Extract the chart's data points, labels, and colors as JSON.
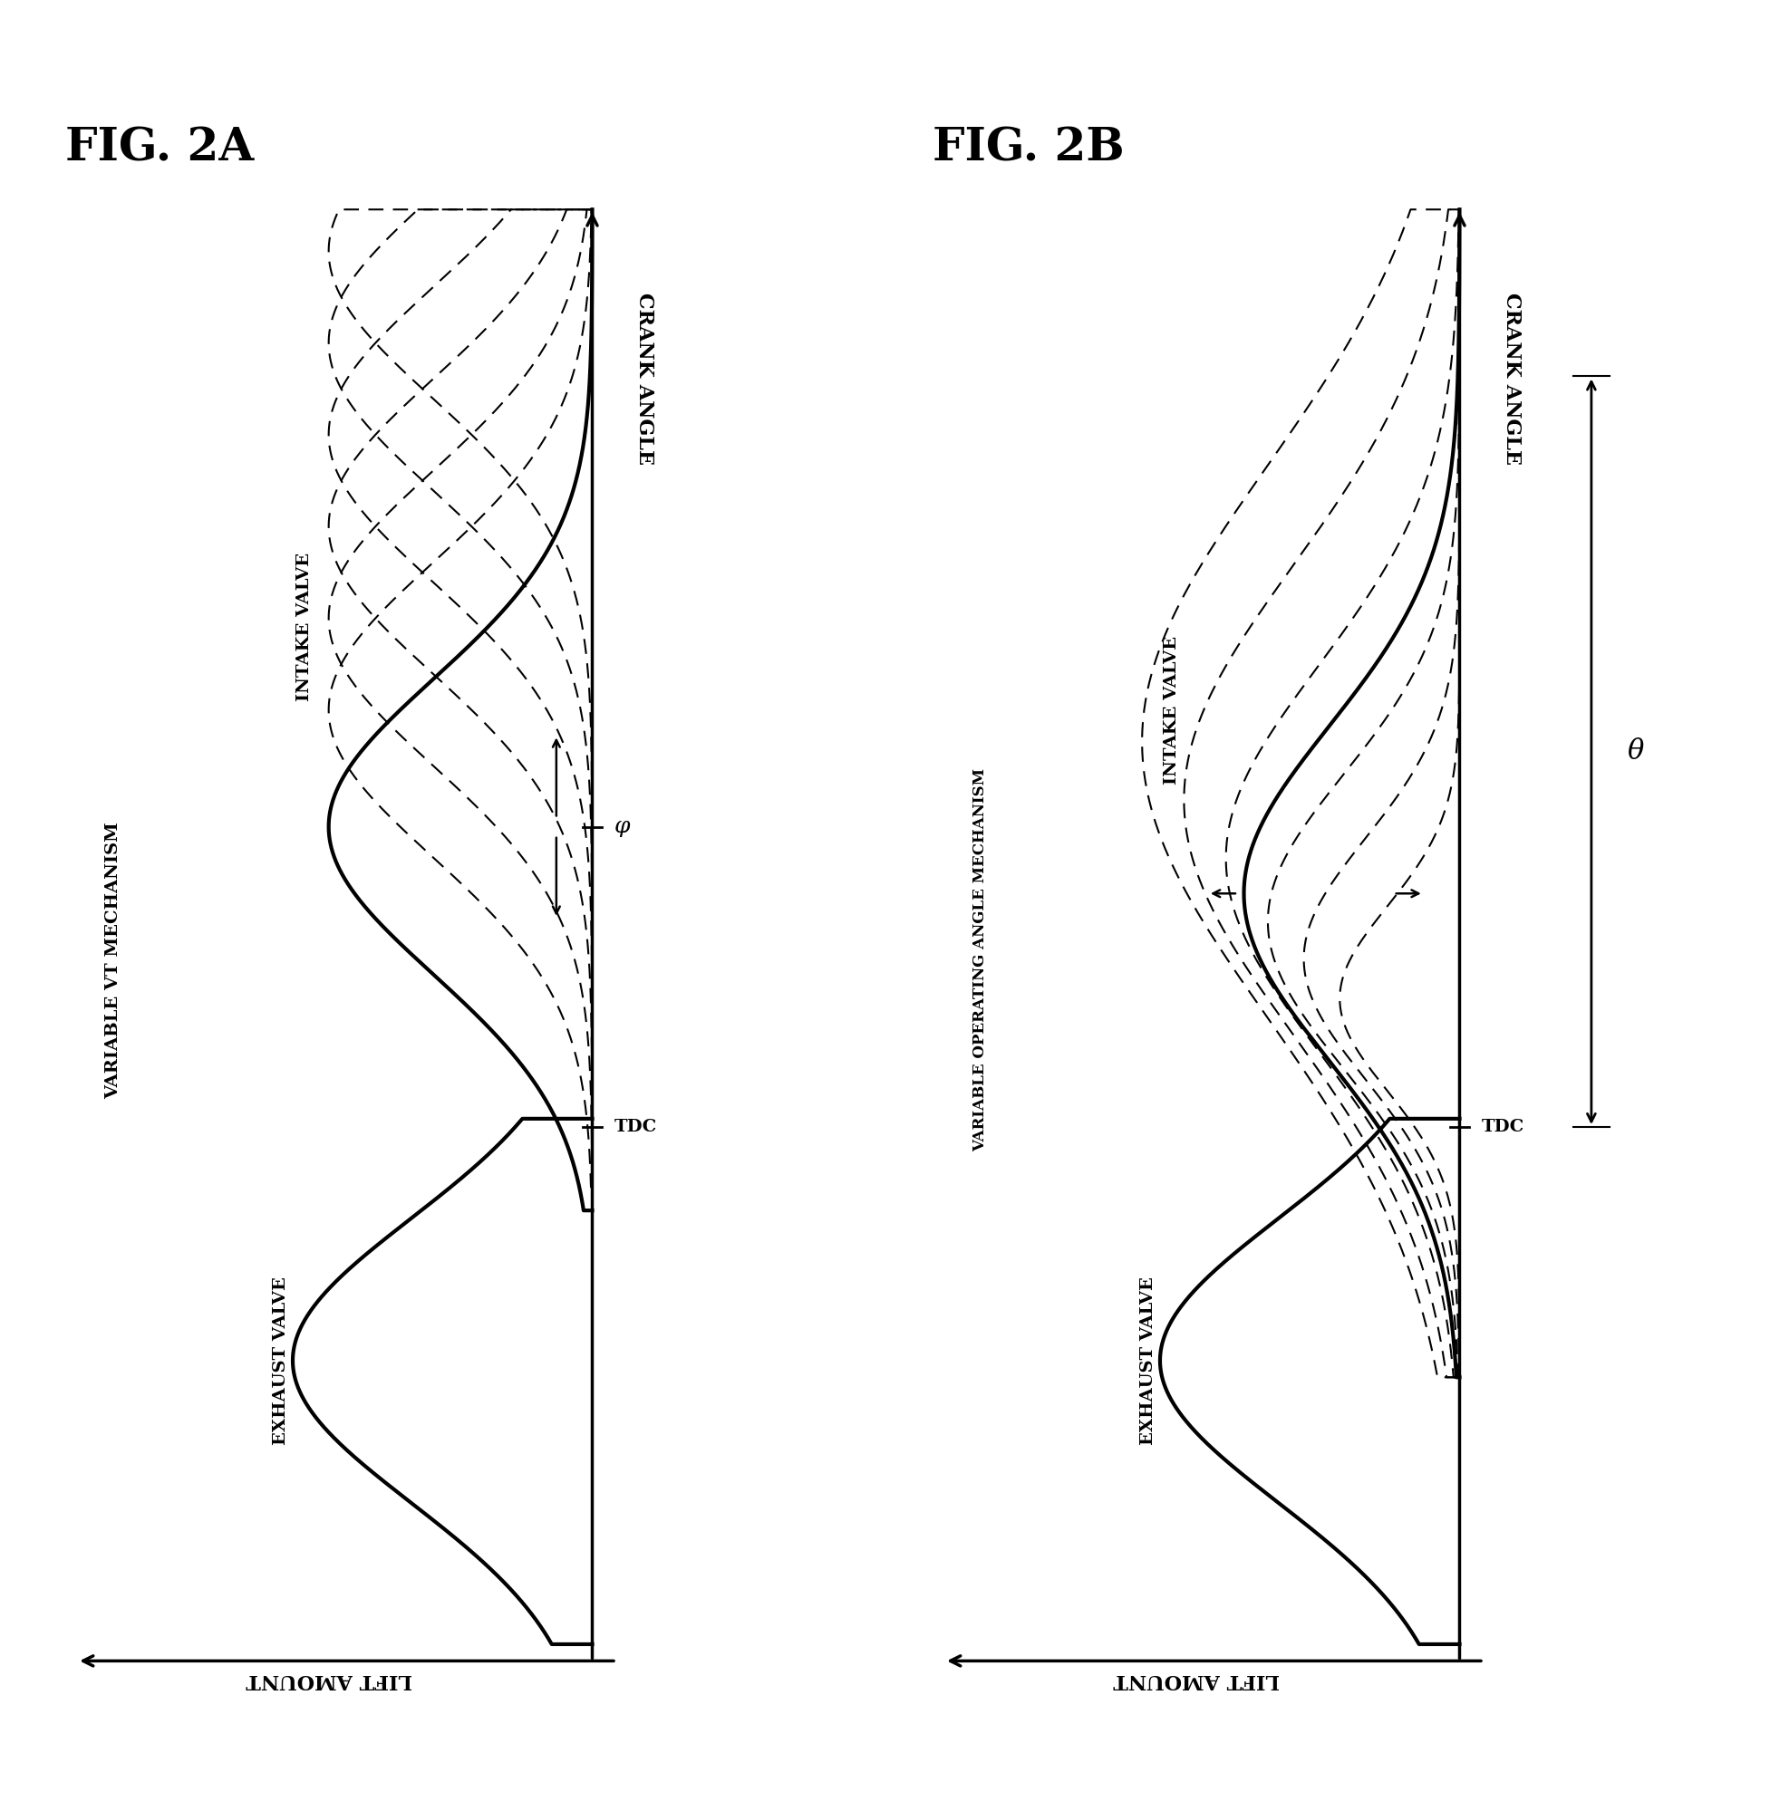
{
  "fig_title_A": "FIG. 2A",
  "fig_title_B": "FIG. 2B",
  "mechanism_label_A": "VARIABLE VT MECHANISM",
  "mechanism_label_B": "VARIABLE OPERATING ANGLE MECHANISM",
  "intake_label": "INTAKE VALVE",
  "exhaust_label": "EXHAUST VALVE",
  "crank_angle_label": "CRANK ANGLE",
  "lift_amount_label": "LIFT AMOUNT",
  "tdc_label": "TDC",
  "phi_label": "φ",
  "theta_label": "θ",
  "background_color": "#ffffff",
  "line_color": "#000000"
}
